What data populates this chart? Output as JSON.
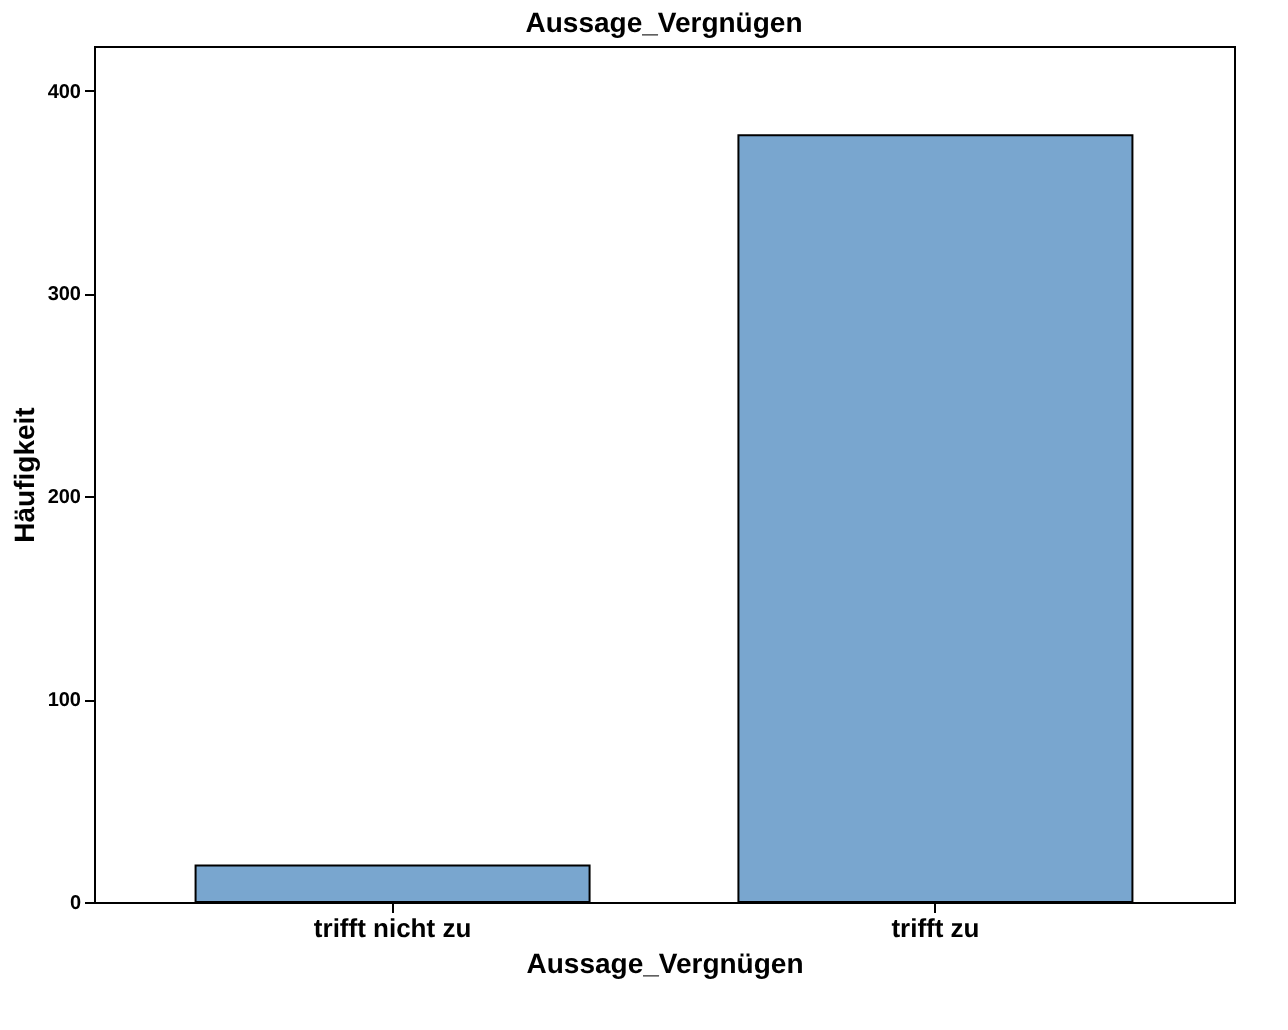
{
  "chart_data": {
    "type": "bar",
    "title": "Aussage_Vergnügen",
    "xlabel": "Aussage_Vergnügen",
    "ylabel": "Häufigkeit",
    "categories": [
      "trifft nicht zu",
      "trifft zu"
    ],
    "values": [
      18,
      378
    ],
    "color": "#79a6cf",
    "ylim": [
      0,
      422
    ],
    "yticks": [
      0,
      100,
      200,
      300,
      400
    ],
    "grid": false
  }
}
